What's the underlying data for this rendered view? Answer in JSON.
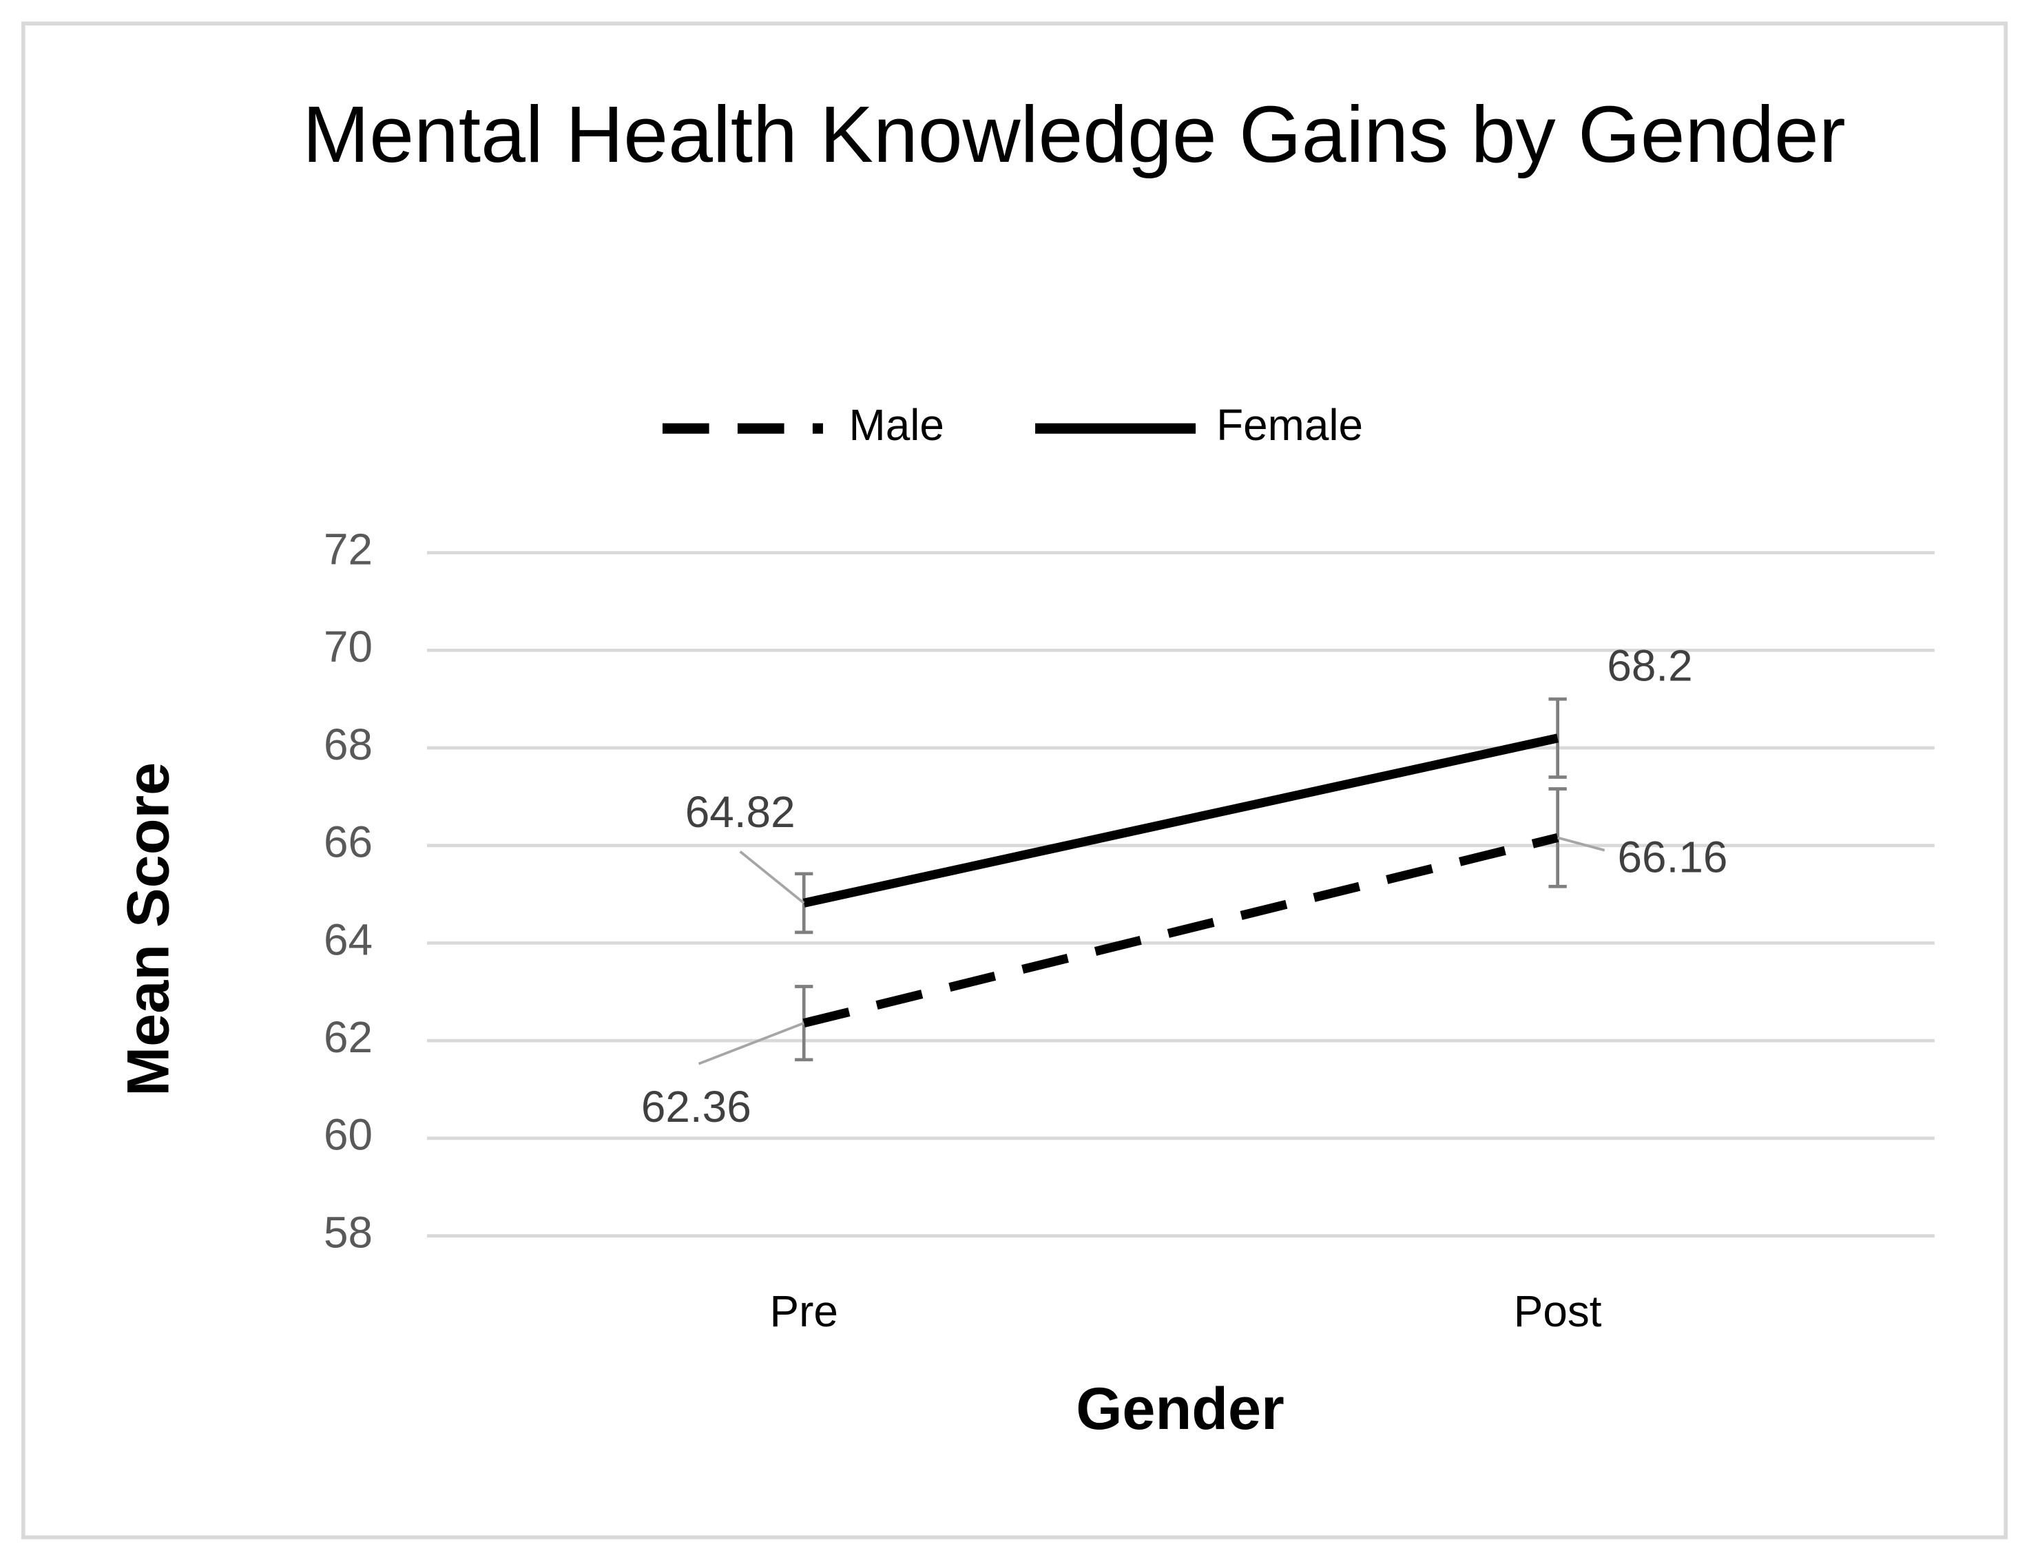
{
  "chart_data": {
    "type": "line",
    "title": "Mental Health Knowledge Gains by Gender",
    "x_label": "Gender",
    "y_label": "Mean Score",
    "categories": [
      "Pre",
      "Post"
    ],
    "series": [
      {
        "name": "Male",
        "color": "#000000",
        "dash": true,
        "values": [
          62.36,
          66.16
        ],
        "errors": [
          0.75,
          1.0
        ]
      },
      {
        "name": "Female",
        "color": "#000000",
        "dash": false,
        "values": [
          64.82,
          68.2
        ],
        "errors": [
          0.6,
          0.8
        ]
      }
    ],
    "ylim": [
      58,
      72
    ],
    "yticks": [
      58,
      60,
      62,
      64,
      66,
      68,
      70,
      72
    ],
    "grid": true,
    "legend": "top",
    "error_color": "#7f7f7f"
  }
}
